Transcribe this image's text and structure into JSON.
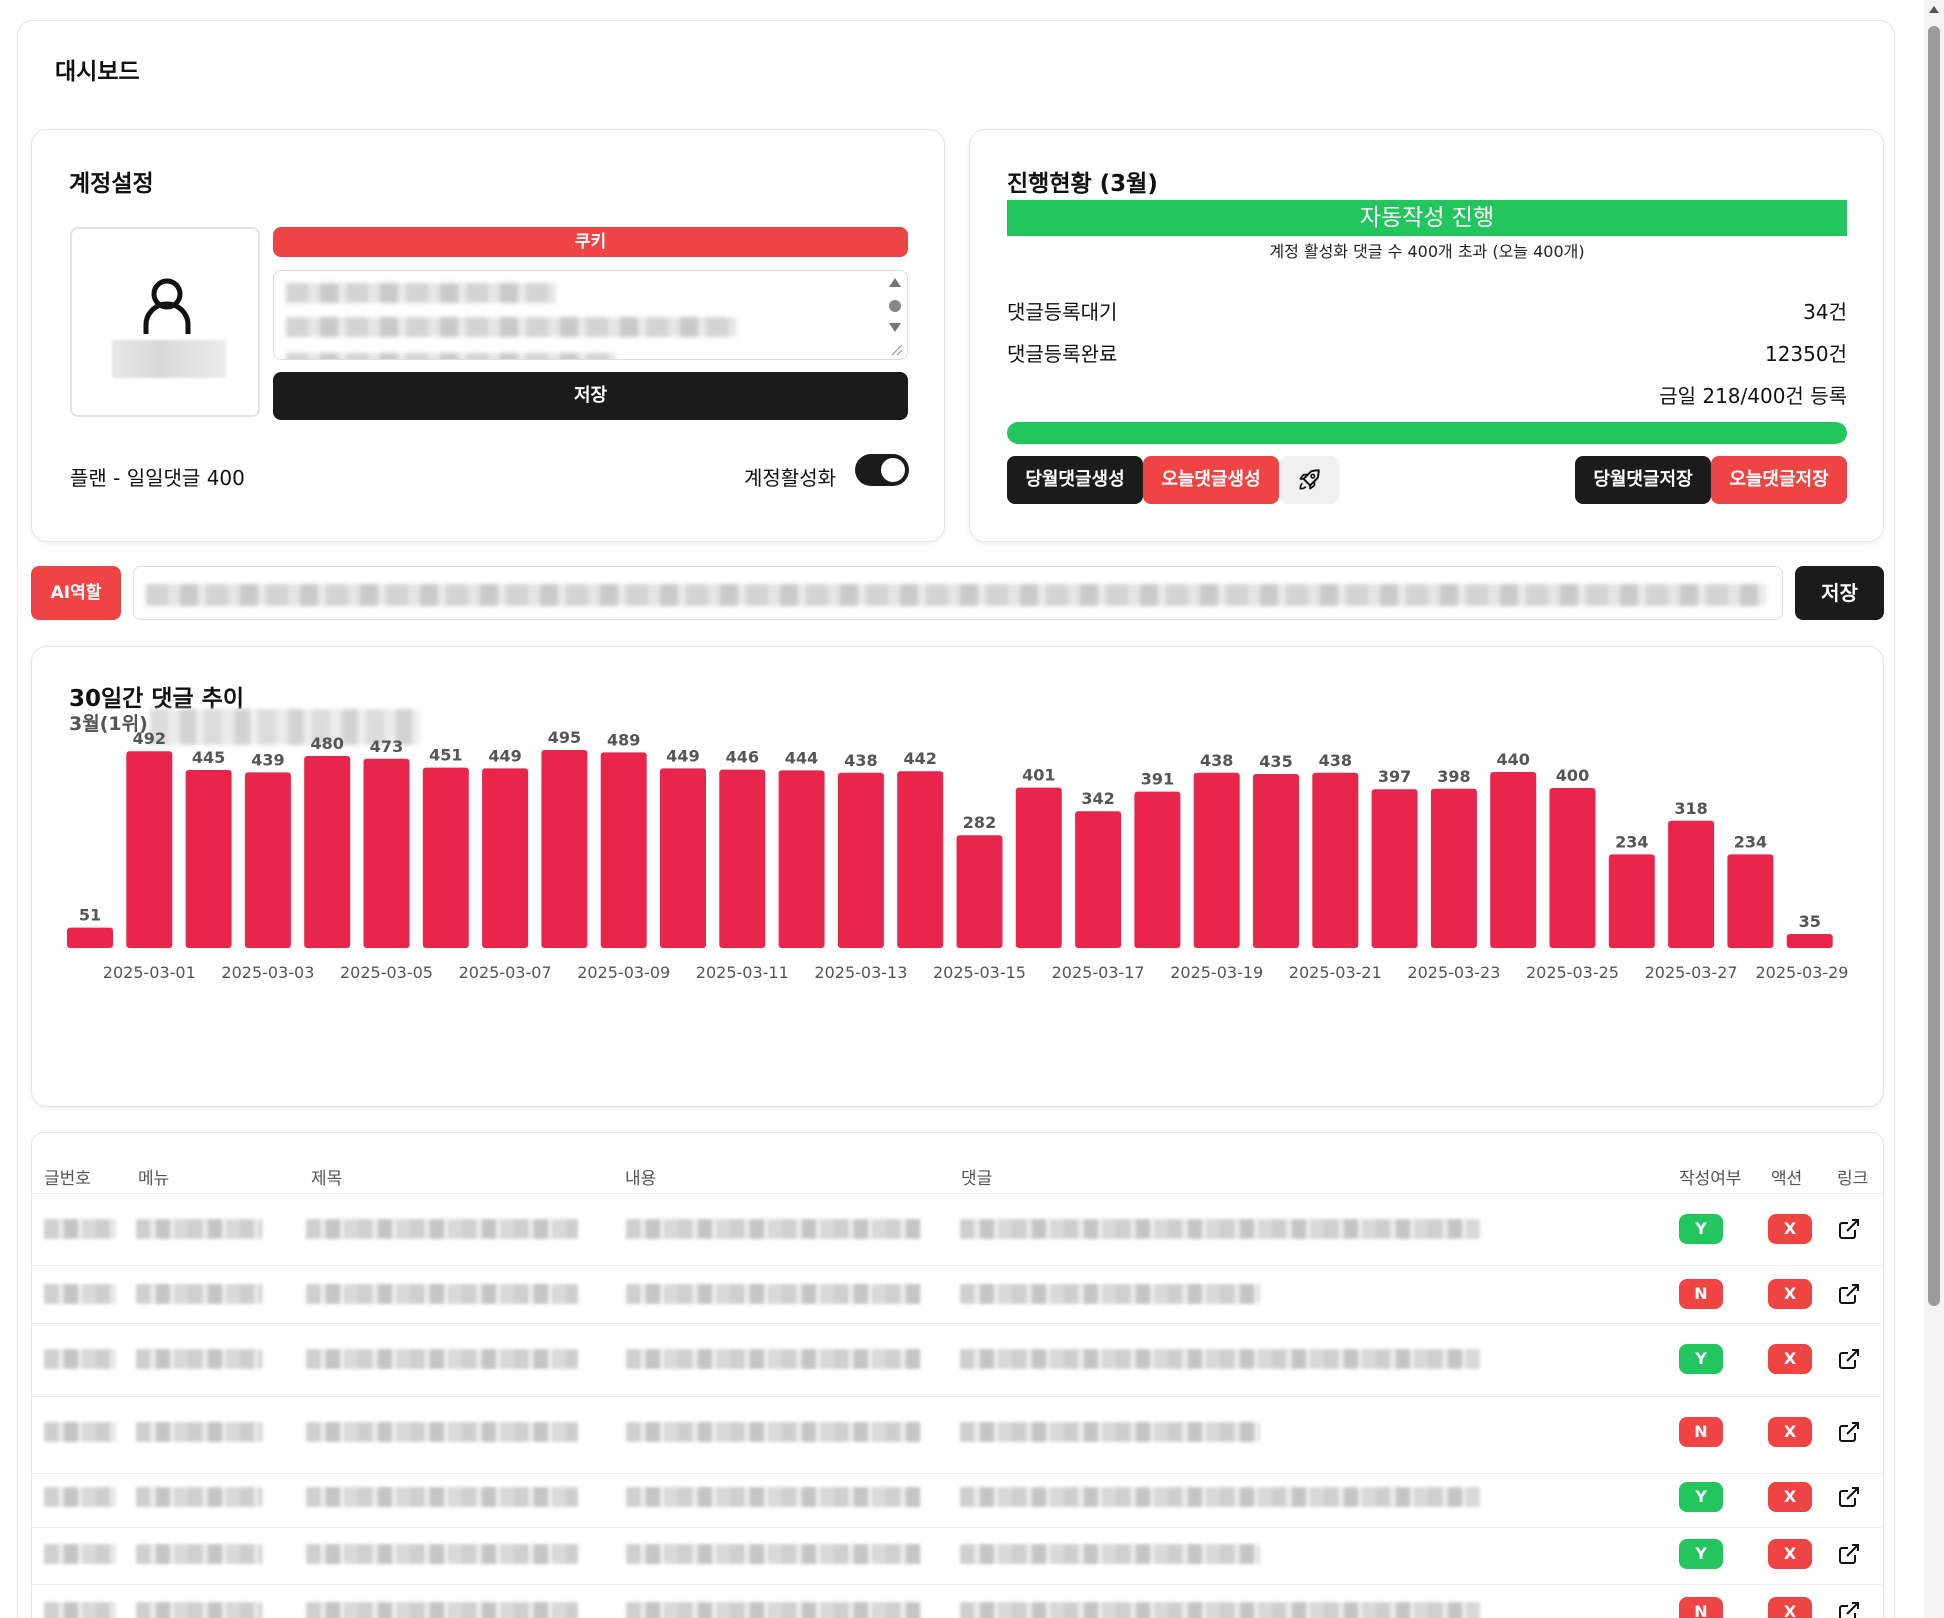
{
  "page": {
    "title": "대시보드"
  },
  "account": {
    "title": "계정설정",
    "cookie_label": "쿠키",
    "save_label": "저장",
    "plan_text": "플랜 - 일일댓글 400",
    "activate_label": "계정활성화",
    "activated": true
  },
  "progress": {
    "title": "진행현황 (3월)",
    "status": "자동작성 진행",
    "status_note": "계정 활성화 댓글 수 400개 초과 (오늘 400개)",
    "stats": [
      {
        "label": "댓글등록대기",
        "value": "34건"
      },
      {
        "label": "댓글등록완료",
        "value": "12350건"
      }
    ],
    "today_text": "금일 218/400건 등록",
    "bar_fill": 1.0,
    "buttons": {
      "month_generate": "당월댓글생성",
      "today_generate": "오늘댓글생성",
      "month_save": "당월댓글저장",
      "today_save": "오늘댓글저장"
    },
    "rocket_icon": "rocket-icon"
  },
  "ai_role": {
    "label": "AI역할",
    "save_label": "저장"
  },
  "trend": {
    "title": "30일간 댓글 추이",
    "subtitle_prefix": "3월(1위) -"
  },
  "chart_data": {
    "type": "bar",
    "categories": [
      "2025-02-28",
      "2025-03-01",
      "2025-03-02",
      "2025-03-03",
      "2025-03-04",
      "2025-03-05",
      "2025-03-06",
      "2025-03-07",
      "2025-03-08",
      "2025-03-09",
      "2025-03-10",
      "2025-03-11",
      "2025-03-12",
      "2025-03-13",
      "2025-03-14",
      "2025-03-15",
      "2025-03-16",
      "2025-03-17",
      "2025-03-18",
      "2025-03-19",
      "2025-03-20",
      "2025-03-21",
      "2025-03-22",
      "2025-03-23",
      "2025-03-24",
      "2025-03-25",
      "2025-03-26",
      "2025-03-27",
      "2025-03-28",
      "2025-03-29"
    ],
    "values": [
      51,
      492,
      445,
      439,
      480,
      473,
      451,
      449,
      495,
      489,
      449,
      446,
      444,
      438,
      442,
      282,
      401,
      342,
      391,
      438,
      435,
      438,
      397,
      398,
      440,
      400,
      234,
      318,
      234,
      35
    ],
    "tick_labels": [
      "2025-03-01",
      "2025-03-03",
      "2025-03-05",
      "2025-03-07",
      "2025-03-09",
      "2025-03-11",
      "2025-03-13",
      "2025-03-15",
      "2025-03-17",
      "2025-03-19",
      "2025-03-21",
      "2025-03-23",
      "2025-03-25",
      "2025-03-27",
      "2025-03-29"
    ],
    "bar_color": "#e8264c",
    "data_labels": true,
    "grid": false,
    "legend": "none"
  },
  "table": {
    "headers": [
      "글번호",
      "메뉴",
      "제목",
      "내용",
      "댓글",
      "작성여부",
      "액션",
      "링크"
    ],
    "rows": [
      {
        "written": "Y",
        "action": "X"
      },
      {
        "written": "N",
        "action": "X"
      },
      {
        "written": "Y",
        "action": "X"
      },
      {
        "written": "N",
        "action": "X"
      },
      {
        "written": "Y",
        "action": "X"
      },
      {
        "written": "Y",
        "action": "X"
      },
      {
        "written": "N",
        "action": "X"
      }
    ]
  },
  "colors": {
    "green": "#22c55e",
    "red": "#ef4444",
    "dark": "#1b1b1b",
    "bar": "#e8264c"
  }
}
